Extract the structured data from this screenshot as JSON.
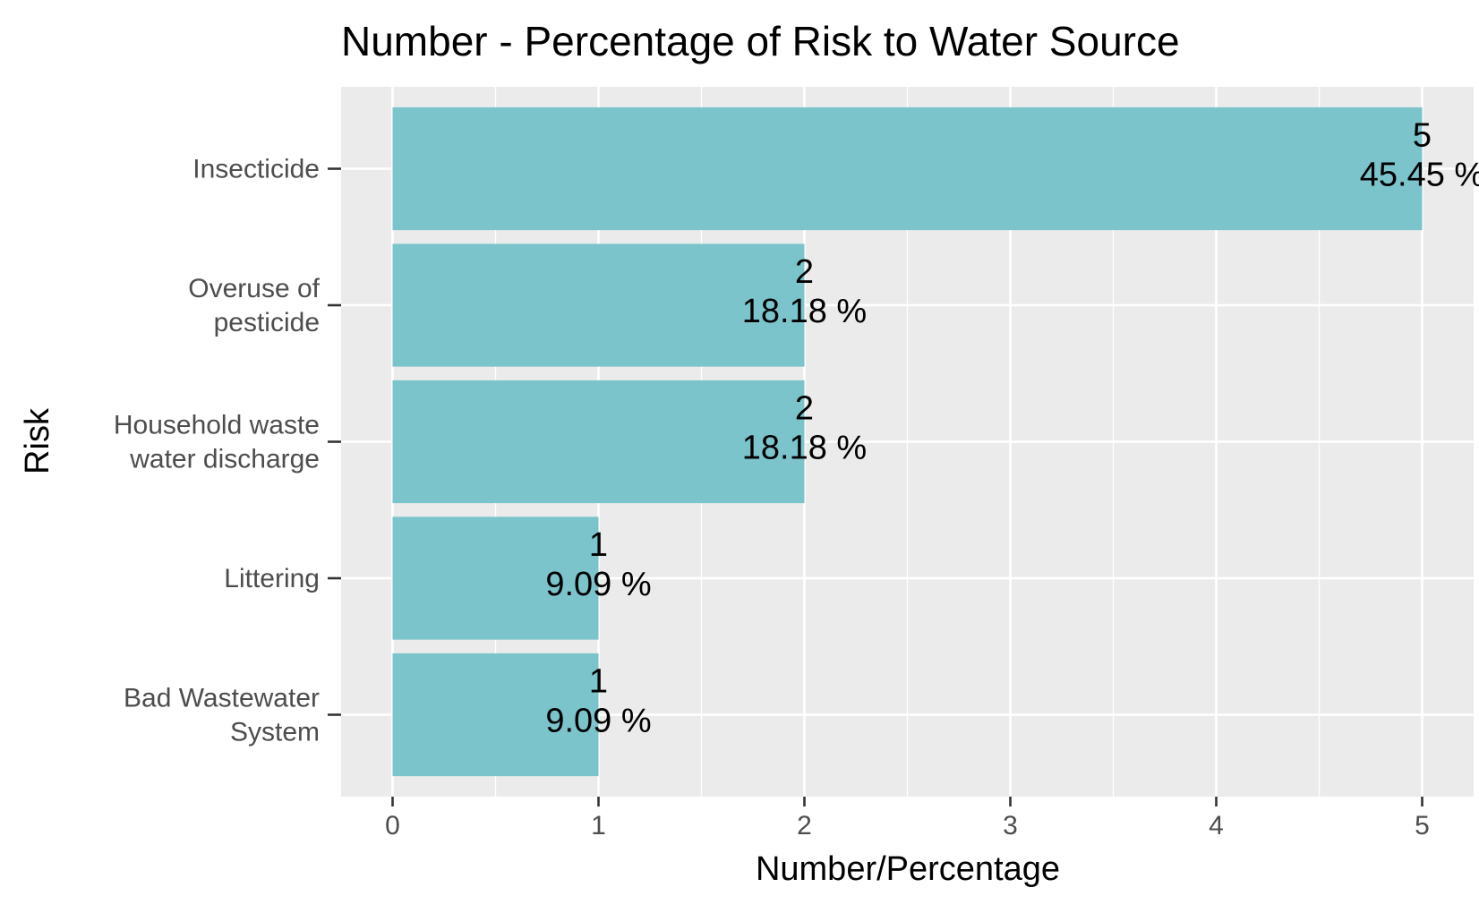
{
  "chart_data": {
    "type": "bar",
    "orientation": "horizontal",
    "title": "Number - Percentage of Risk to Water Source",
    "xlabel": "Number/Percentage",
    "ylabel": "Risk",
    "categories": [
      [
        "Insecticide"
      ],
      [
        "Overuse of",
        "pesticide"
      ],
      [
        "Household waste",
        "water discharge"
      ],
      [
        "Littering"
      ],
      [
        "Bad Wastewater",
        "System"
      ]
    ],
    "values": [
      5,
      2,
      2,
      1,
      1
    ],
    "data_labels": [
      [
        "5",
        "45.45 %"
      ],
      [
        "2",
        "18.18 %"
      ],
      [
        "2",
        "18.18 %"
      ],
      [
        "1",
        "9.09 %"
      ],
      [
        "1",
        "9.09 %"
      ]
    ],
    "xlim": [
      -0.25,
      5.25
    ],
    "xticks": [
      "0",
      "1",
      "2",
      "3",
      "4",
      "5"
    ],
    "grid": true,
    "legend": "none",
    "colors": {
      "bar": "#7bc4cc",
      "panel": "#ebebeb",
      "grid": "#ffffff"
    }
  }
}
